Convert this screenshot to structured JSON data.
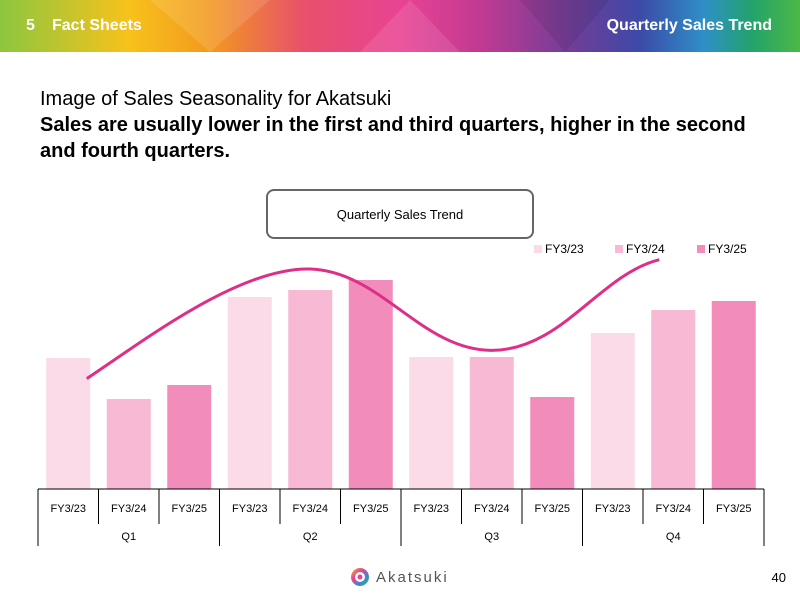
{
  "header": {
    "section_number": "5",
    "section_title": "Fact Sheets",
    "page_title": "Quarterly Sales Trend"
  },
  "heading": "Image of Sales Seasonality for Akatsuki",
  "subheading": "Sales are usually lower in the first and third quarters, higher in the second and fourth quarters.",
  "chart_data": {
    "type": "bar",
    "title": "Quarterly Sales Trend",
    "groups": [
      "Q1",
      "Q2",
      "Q3",
      "Q4"
    ],
    "series": [
      {
        "name": "FY3/23",
        "color": "#fadbe7",
        "values": [
          131,
          192,
          132,
          156
        ]
      },
      {
        "name": "FY3/24",
        "color": "#f7b9d4",
        "values": [
          90,
          199,
          132,
          179
        ]
      },
      {
        "name": "FY3/25",
        "color": "#f28dbb",
        "values": [
          104,
          209,
          92,
          188
        ]
      }
    ],
    "ylim": [
      0,
      220
    ],
    "trend_line_color": "#dd2f87",
    "legend_position": "top-right"
  },
  "footer": {
    "logo_text": "Akatsuki",
    "page_number": "40"
  }
}
